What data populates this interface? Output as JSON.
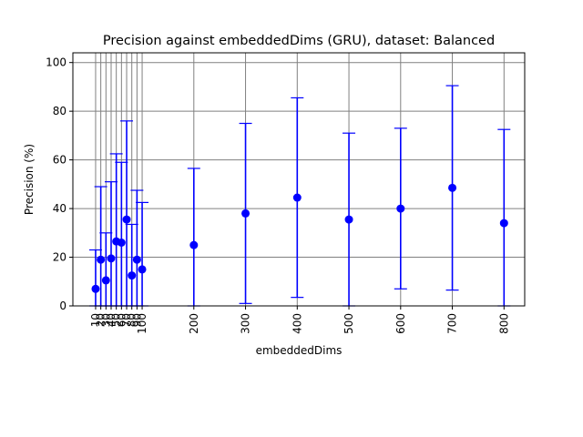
{
  "chart_data": {
    "type": "scatter",
    "title": "Precision against embeddedDims (GRU), dataset: Balanced",
    "xlabel": "embeddedDims",
    "ylabel": "Precision (%)",
    "x_ticks": [
      10,
      20,
      30,
      40,
      50,
      60,
      70,
      80,
      90,
      100,
      200,
      300,
      400,
      500,
      600,
      700,
      800
    ],
    "y_ticks": [
      0,
      20,
      40,
      60,
      80,
      100
    ],
    "xlim": [
      -34,
      840
    ],
    "ylim": [
      0,
      104
    ],
    "grid": true,
    "legend": "none",
    "error_bars": true,
    "series": [
      {
        "color": "#0000ff",
        "points": [
          {
            "x": 10,
            "y": 7,
            "err": 16
          },
          {
            "x": 20,
            "y": 19,
            "err": 30
          },
          {
            "x": 30,
            "y": 10.5,
            "err": 19.5
          },
          {
            "x": 40,
            "y": 19.5,
            "err": 31.5
          },
          {
            "x": 50,
            "y": 26.5,
            "err": 36
          },
          {
            "x": 60,
            "y": 26,
            "err": 33
          },
          {
            "x": 70,
            "y": 35.5,
            "err": 40.5
          },
          {
            "x": 80,
            "y": 12.5,
            "err": 21
          },
          {
            "x": 90,
            "y": 19,
            "err": 28.5
          },
          {
            "x": 100,
            "y": 15,
            "err": 27.5
          },
          {
            "x": 200,
            "y": 25,
            "err": 31.5
          },
          {
            "x": 300,
            "y": 38,
            "err": 37
          },
          {
            "x": 400,
            "y": 44.5,
            "err": 41
          },
          {
            "x": 500,
            "y": 35.5,
            "err": 35.5
          },
          {
            "x": 600,
            "y": 40,
            "err": 33
          },
          {
            "x": 700,
            "y": 48.5,
            "err": 42
          },
          {
            "x": 800,
            "y": 34,
            "err": 38.5
          }
        ]
      }
    ]
  }
}
